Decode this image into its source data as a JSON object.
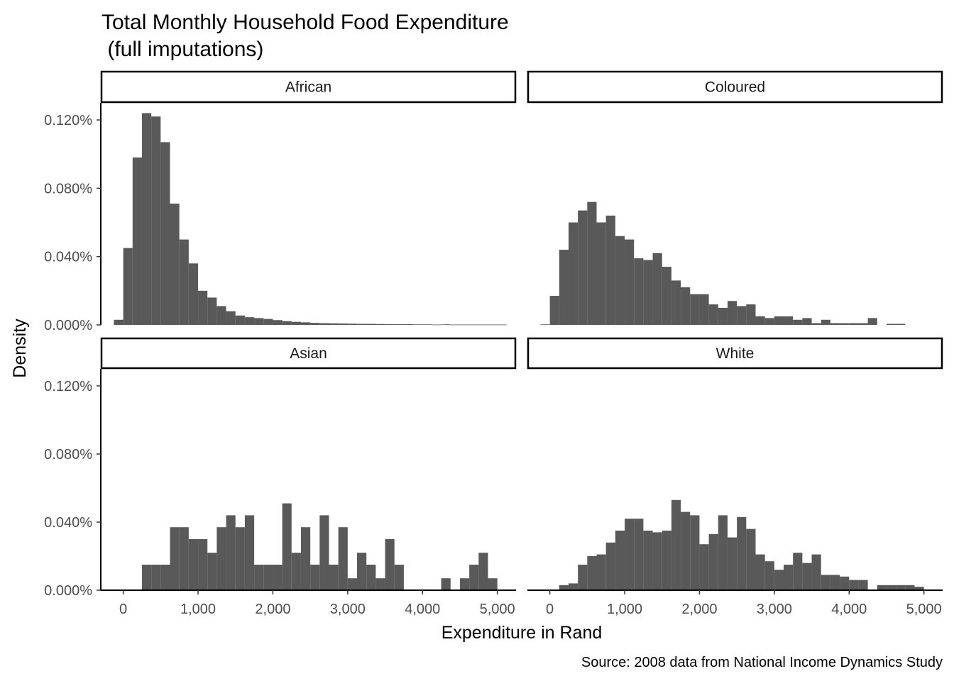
{
  "chart_data": {
    "type": "histogram-facets",
    "title_line1": "Total Monthly Household Food Expenditure",
    "title_line2": " (full imputations)",
    "xlabel": "Expenditure in Rand",
    "ylabel": "Density",
    "caption": "Source: 2008 data from National Income Dynamics Study",
    "xlim": [
      -300,
      5250
    ],
    "ylim": [
      0,
      0.0013
    ],
    "bin_width": 125,
    "first_bin_center": -62.5,
    "x_ticks": [
      0,
      1000,
      2000,
      3000,
      4000,
      5000
    ],
    "x_tick_labels": [
      "0",
      "1,000",
      "2,000",
      "3,000",
      "4,000",
      "5,000"
    ],
    "y_ticks": [
      0,
      0.0004,
      0.0008,
      0.0012
    ],
    "y_tick_labels": [
      "0.000%",
      "0.040%",
      "0.080%",
      "0.120%"
    ],
    "bar_color": "#595959",
    "facets": [
      {
        "name": "African",
        "densities": [
          3e-05,
          0.00045,
          0.00098,
          0.00124,
          0.00122,
          0.00107,
          0.00071,
          0.0005,
          0.00036,
          0.0002,
          0.00016,
          0.00011,
          8e-05,
          5.5e-05,
          4.5e-05,
          4e-05,
          3.5e-05,
          2.8e-05,
          2.2e-05,
          1.8e-05,
          1.5e-05,
          1.2e-05,
          1e-05,
          9e-06,
          8e-06,
          7e-06,
          6e-06,
          6e-06,
          5e-06,
          4e-06,
          4e-06,
          4e-06,
          3e-06,
          3e-06,
          2e-06,
          3e-06,
          2e-06,
          2e-06,
          2e-06,
          2e-06,
          2e-06,
          2e-06,
          0
        ]
      },
      {
        "name": "Coloured",
        "densities": [
          3e-06,
          0.00017,
          0.00044,
          0.0006,
          0.00067,
          0.00072,
          0.0006,
          0.00064,
          0.00052,
          0.0005,
          0.00039,
          0.00038,
          0.00042,
          0.00034,
          0.00026,
          0.00022,
          0.00018,
          0.00018,
          0.00012,
          0.0001,
          0.00014,
          0.00011,
          0.00012,
          5e-05,
          4e-05,
          5e-05,
          5e-05,
          3e-05,
          4e-05,
          1e-05,
          3e-05,
          1e-05,
          1e-05,
          1e-05,
          1e-05,
          4e-05,
          0,
          6e-06,
          6e-06,
          0
        ]
      },
      {
        "name": "Asian",
        "densities": [
          0,
          0,
          0,
          0.00015,
          0.00015,
          0.00015,
          0.00037,
          0.00037,
          0.0003,
          0.0003,
          0.00022,
          0.00037,
          0.00044,
          0.00037,
          0.00044,
          0.00015,
          0.00015,
          0.00015,
          0.00051,
          0.00022,
          0.00037,
          0.00015,
          0.00044,
          0.00015,
          0.00037,
          7e-05,
          0.00022,
          0.00015,
          7e-05,
          0.0003,
          0.00015,
          0,
          0,
          0,
          0,
          7e-05,
          0,
          7e-05,
          0.00015,
          0.00022,
          7e-05,
          0
        ]
      },
      {
        "name": "White",
        "densities": [
          0,
          0,
          3e-05,
          4e-05,
          0.00015,
          0.0002,
          0.00021,
          0.00028,
          0.00035,
          0.00042,
          0.00042,
          0.00035,
          0.00034,
          0.00035,
          0.00053,
          0.00046,
          0.00044,
          0.00027,
          0.00033,
          0.00044,
          0.00031,
          0.00043,
          0.00036,
          0.00021,
          0.00017,
          0.00012,
          0.00015,
          0.00022,
          0.00016,
          0.00021,
          9e-05,
          9e-05,
          8e-05,
          6e-05,
          6e-05,
          0,
          3e-05,
          3e-05,
          3e-05,
          3e-05,
          2e-05,
          0
        ]
      }
    ]
  }
}
